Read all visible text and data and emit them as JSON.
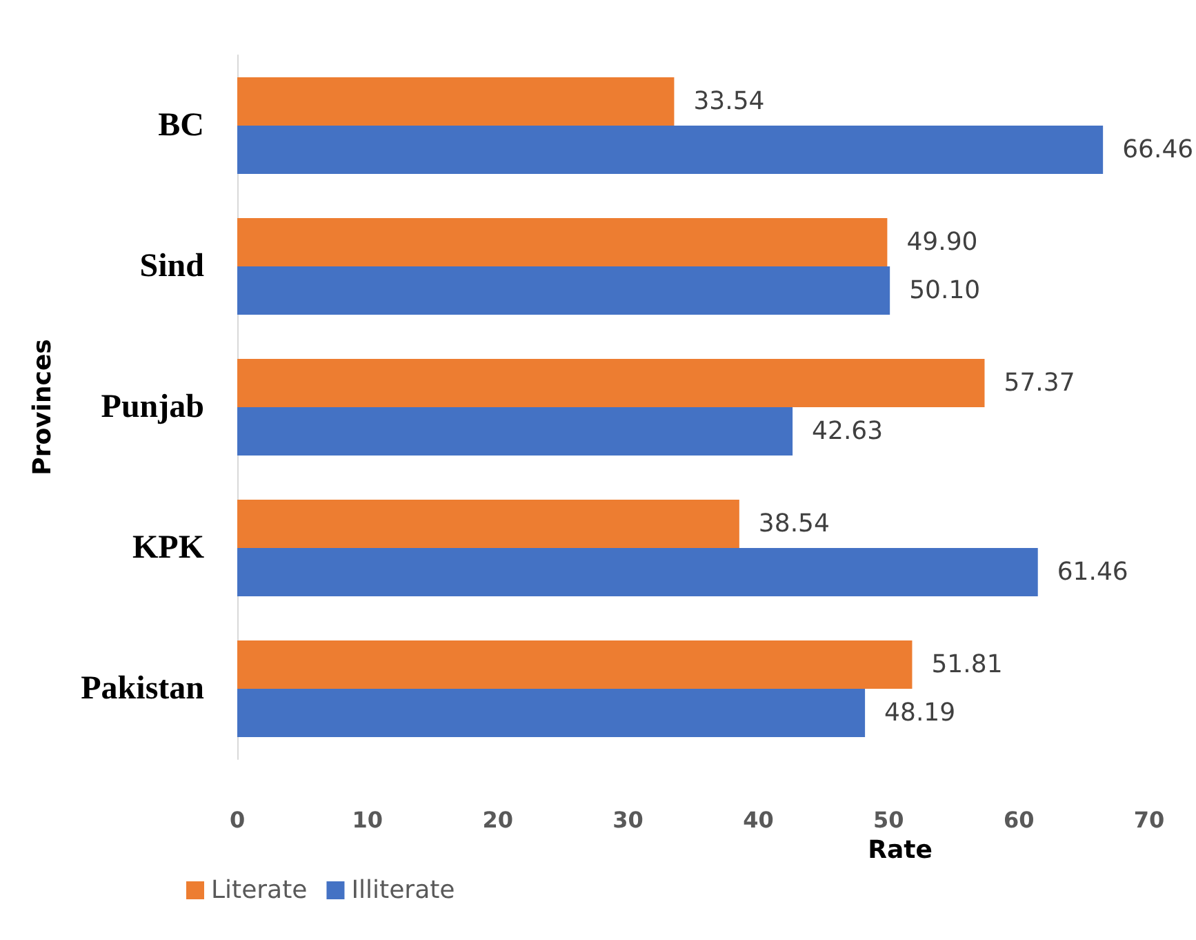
{
  "chart_data": {
    "type": "bar",
    "orientation": "horizontal",
    "xlabel": "Rate",
    "ylabel": "Provinces",
    "categories": [
      "BC",
      "Sind",
      "Punjab",
      "KPK",
      "Pakistan"
    ],
    "series": [
      {
        "name": "Literate",
        "color": "#ed7d31",
        "values": [
          33.54,
          49.9,
          57.37,
          38.54,
          51.81
        ],
        "value_labels": [
          "33.54",
          "49.90",
          "57.37",
          "38.54",
          "51.81"
        ]
      },
      {
        "name": "Illiterate",
        "color": "#4472c4",
        "values": [
          66.46,
          50.1,
          42.63,
          61.46,
          48.19
        ],
        "value_labels": [
          "66.46",
          "50.10",
          "42.63",
          "61.46",
          "48.19"
        ]
      }
    ],
    "xlim": [
      0,
      70
    ],
    "xticks": [
      0,
      10,
      20,
      30,
      40,
      50,
      60,
      70
    ],
    "grid": false,
    "legend": "bottom left"
  }
}
